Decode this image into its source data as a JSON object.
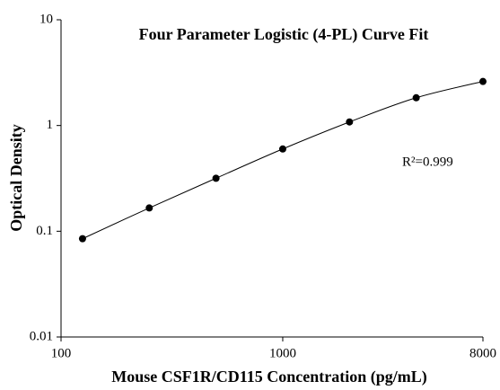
{
  "chart_data": {
    "type": "scatter",
    "title": "Four Parameter Logistic (4-PL) Curve Fit",
    "x_label": "Mouse CSF1R/CD115 Concentration (pg/mL)",
    "y_label": "Optical Density",
    "annotation": "R²=0.999",
    "x_scale": "log",
    "y_scale": "log",
    "xlim": [
      100,
      8000
    ],
    "ylim": [
      0.01,
      10
    ],
    "xticks": [
      100,
      1000,
      8000
    ],
    "yticks": [
      0.01,
      0.1,
      1,
      10
    ],
    "fit_curve": true,
    "series": [
      {
        "color": "#000000",
        "x": [
          125,
          250,
          500,
          1000,
          2000,
          4000,
          8000
        ],
        "values": [
          0.085,
          0.166,
          0.317,
          0.6,
          1.08,
          1.83,
          2.61
        ]
      }
    ]
  }
}
